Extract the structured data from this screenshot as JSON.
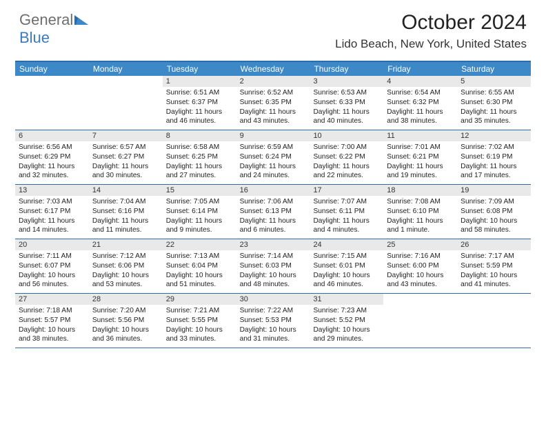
{
  "logo": {
    "text1": "General",
    "text2": "Blue"
  },
  "title": "October 2024",
  "location": "Lido Beach, New York, United States",
  "colors": {
    "header_bar": "#3d88c7",
    "row_border": "#2d6aa8",
    "daynum_bg": "#e9e9e9",
    "logo_gray": "#6e6e6e",
    "logo_blue": "#3a7bbf"
  },
  "days_of_week": [
    "Sunday",
    "Monday",
    "Tuesday",
    "Wednesday",
    "Thursday",
    "Friday",
    "Saturday"
  ],
  "weeks": [
    [
      null,
      null,
      {
        "n": "1",
        "sr": "Sunrise: 6:51 AM",
        "ss": "Sunset: 6:37 PM",
        "d1": "Daylight: 11 hours",
        "d2": "and 46 minutes."
      },
      {
        "n": "2",
        "sr": "Sunrise: 6:52 AM",
        "ss": "Sunset: 6:35 PM",
        "d1": "Daylight: 11 hours",
        "d2": "and 43 minutes."
      },
      {
        "n": "3",
        "sr": "Sunrise: 6:53 AM",
        "ss": "Sunset: 6:33 PM",
        "d1": "Daylight: 11 hours",
        "d2": "and 40 minutes."
      },
      {
        "n": "4",
        "sr": "Sunrise: 6:54 AM",
        "ss": "Sunset: 6:32 PM",
        "d1": "Daylight: 11 hours",
        "d2": "and 38 minutes."
      },
      {
        "n": "5",
        "sr": "Sunrise: 6:55 AM",
        "ss": "Sunset: 6:30 PM",
        "d1": "Daylight: 11 hours",
        "d2": "and 35 minutes."
      }
    ],
    [
      {
        "n": "6",
        "sr": "Sunrise: 6:56 AM",
        "ss": "Sunset: 6:29 PM",
        "d1": "Daylight: 11 hours",
        "d2": "and 32 minutes."
      },
      {
        "n": "7",
        "sr": "Sunrise: 6:57 AM",
        "ss": "Sunset: 6:27 PM",
        "d1": "Daylight: 11 hours",
        "d2": "and 30 minutes."
      },
      {
        "n": "8",
        "sr": "Sunrise: 6:58 AM",
        "ss": "Sunset: 6:25 PM",
        "d1": "Daylight: 11 hours",
        "d2": "and 27 minutes."
      },
      {
        "n": "9",
        "sr": "Sunrise: 6:59 AM",
        "ss": "Sunset: 6:24 PM",
        "d1": "Daylight: 11 hours",
        "d2": "and 24 minutes."
      },
      {
        "n": "10",
        "sr": "Sunrise: 7:00 AM",
        "ss": "Sunset: 6:22 PM",
        "d1": "Daylight: 11 hours",
        "d2": "and 22 minutes."
      },
      {
        "n": "11",
        "sr": "Sunrise: 7:01 AM",
        "ss": "Sunset: 6:21 PM",
        "d1": "Daylight: 11 hours",
        "d2": "and 19 minutes."
      },
      {
        "n": "12",
        "sr": "Sunrise: 7:02 AM",
        "ss": "Sunset: 6:19 PM",
        "d1": "Daylight: 11 hours",
        "d2": "and 17 minutes."
      }
    ],
    [
      {
        "n": "13",
        "sr": "Sunrise: 7:03 AM",
        "ss": "Sunset: 6:17 PM",
        "d1": "Daylight: 11 hours",
        "d2": "and 14 minutes."
      },
      {
        "n": "14",
        "sr": "Sunrise: 7:04 AM",
        "ss": "Sunset: 6:16 PM",
        "d1": "Daylight: 11 hours",
        "d2": "and 11 minutes."
      },
      {
        "n": "15",
        "sr": "Sunrise: 7:05 AM",
        "ss": "Sunset: 6:14 PM",
        "d1": "Daylight: 11 hours",
        "d2": "and 9 minutes."
      },
      {
        "n": "16",
        "sr": "Sunrise: 7:06 AM",
        "ss": "Sunset: 6:13 PM",
        "d1": "Daylight: 11 hours",
        "d2": "and 6 minutes."
      },
      {
        "n": "17",
        "sr": "Sunrise: 7:07 AM",
        "ss": "Sunset: 6:11 PM",
        "d1": "Daylight: 11 hours",
        "d2": "and 4 minutes."
      },
      {
        "n": "18",
        "sr": "Sunrise: 7:08 AM",
        "ss": "Sunset: 6:10 PM",
        "d1": "Daylight: 11 hours",
        "d2": "and 1 minute."
      },
      {
        "n": "19",
        "sr": "Sunrise: 7:09 AM",
        "ss": "Sunset: 6:08 PM",
        "d1": "Daylight: 10 hours",
        "d2": "and 58 minutes."
      }
    ],
    [
      {
        "n": "20",
        "sr": "Sunrise: 7:11 AM",
        "ss": "Sunset: 6:07 PM",
        "d1": "Daylight: 10 hours",
        "d2": "and 56 minutes."
      },
      {
        "n": "21",
        "sr": "Sunrise: 7:12 AM",
        "ss": "Sunset: 6:06 PM",
        "d1": "Daylight: 10 hours",
        "d2": "and 53 minutes."
      },
      {
        "n": "22",
        "sr": "Sunrise: 7:13 AM",
        "ss": "Sunset: 6:04 PM",
        "d1": "Daylight: 10 hours",
        "d2": "and 51 minutes."
      },
      {
        "n": "23",
        "sr": "Sunrise: 7:14 AM",
        "ss": "Sunset: 6:03 PM",
        "d1": "Daylight: 10 hours",
        "d2": "and 48 minutes."
      },
      {
        "n": "24",
        "sr": "Sunrise: 7:15 AM",
        "ss": "Sunset: 6:01 PM",
        "d1": "Daylight: 10 hours",
        "d2": "and 46 minutes."
      },
      {
        "n": "25",
        "sr": "Sunrise: 7:16 AM",
        "ss": "Sunset: 6:00 PM",
        "d1": "Daylight: 10 hours",
        "d2": "and 43 minutes."
      },
      {
        "n": "26",
        "sr": "Sunrise: 7:17 AM",
        "ss": "Sunset: 5:59 PM",
        "d1": "Daylight: 10 hours",
        "d2": "and 41 minutes."
      }
    ],
    [
      {
        "n": "27",
        "sr": "Sunrise: 7:18 AM",
        "ss": "Sunset: 5:57 PM",
        "d1": "Daylight: 10 hours",
        "d2": "and 38 minutes."
      },
      {
        "n": "28",
        "sr": "Sunrise: 7:20 AM",
        "ss": "Sunset: 5:56 PM",
        "d1": "Daylight: 10 hours",
        "d2": "and 36 minutes."
      },
      {
        "n": "29",
        "sr": "Sunrise: 7:21 AM",
        "ss": "Sunset: 5:55 PM",
        "d1": "Daylight: 10 hours",
        "d2": "and 33 minutes."
      },
      {
        "n": "30",
        "sr": "Sunrise: 7:22 AM",
        "ss": "Sunset: 5:53 PM",
        "d1": "Daylight: 10 hours",
        "d2": "and 31 minutes."
      },
      {
        "n": "31",
        "sr": "Sunrise: 7:23 AM",
        "ss": "Sunset: 5:52 PM",
        "d1": "Daylight: 10 hours",
        "d2": "and 29 minutes."
      },
      null,
      null
    ]
  ]
}
